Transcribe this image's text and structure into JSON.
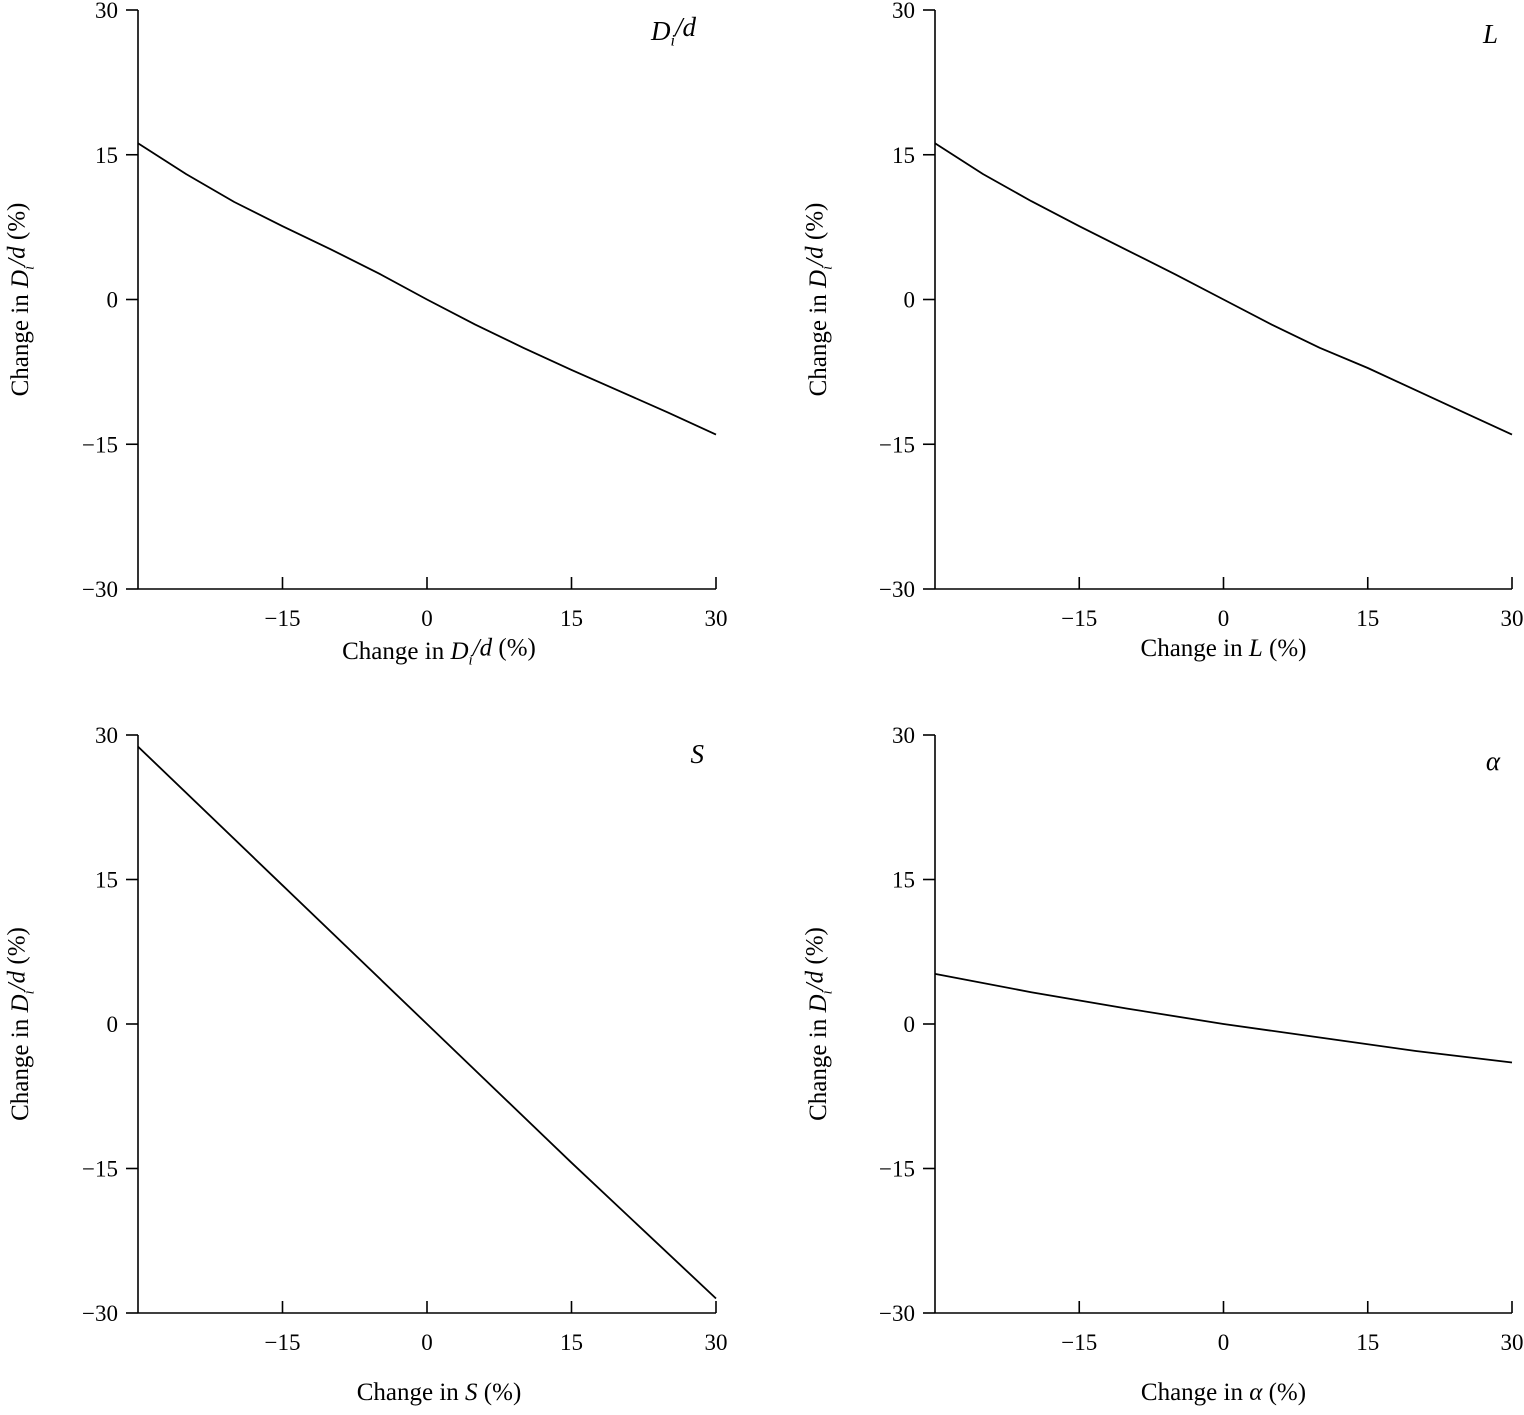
{
  "chart_data": [
    {
      "type": "line",
      "panel_label": "D_i/d",
      "xlabel": "Change in D_i/d (%)",
      "ylabel": "Change in D_i/d (%)",
      "xlim": [
        -30,
        30
      ],
      "ylim": [
        -30,
        30
      ],
      "xticks": [
        -15,
        0,
        15,
        30
      ],
      "yticks": [
        30,
        15,
        0,
        -15,
        -30
      ],
      "series": [
        {
          "x": [
            -30,
            -25,
            -20,
            -15,
            -10,
            -5,
            0,
            5,
            10,
            15,
            20,
            25,
            30
          ],
          "y": [
            16.2,
            13.0,
            10.1,
            7.6,
            5.2,
            2.7,
            0,
            -2.6,
            -5.0,
            -7.3,
            -9.5,
            -11.7,
            -14.0
          ]
        }
      ]
    },
    {
      "type": "line",
      "panel_label": "L",
      "xlabel": "Change in L (%)",
      "ylabel": "Change in D_i/d (%)",
      "xlim": [
        -30,
        30
      ],
      "ylim": [
        -30,
        30
      ],
      "xticks": [
        -15,
        0,
        15,
        30
      ],
      "yticks": [
        30,
        15,
        0,
        -15,
        -30
      ],
      "series": [
        {
          "x": [
            -30,
            -25,
            -20,
            -15,
            -10,
            -5,
            0,
            5,
            10,
            15,
            20,
            25,
            30
          ],
          "y": [
            16.2,
            13.0,
            10.2,
            7.6,
            5.1,
            2.6,
            0,
            -2.6,
            -5.0,
            -7.1,
            -9.4,
            -11.7,
            -14.0
          ]
        }
      ]
    },
    {
      "type": "line",
      "panel_label": "S",
      "xlabel": "Change in S (%)",
      "ylabel": "Change in D_i/d (%)",
      "xlim": [
        -30,
        30
      ],
      "ylim": [
        -30,
        30
      ],
      "xticks": [
        -15,
        0,
        15,
        30
      ],
      "yticks": [
        30,
        15,
        0,
        -15,
        -30
      ],
      "series": [
        {
          "x": [
            -30,
            -15,
            0,
            15,
            30
          ],
          "y": [
            28.8,
            14.4,
            0,
            -14.4,
            -28.5
          ]
        }
      ]
    },
    {
      "type": "line",
      "panel_label": "α",
      "xlabel": "Change in α (%)",
      "ylabel": "Change in D_i/d (%)",
      "xlim": [
        -30,
        30
      ],
      "ylim": [
        -30,
        30
      ],
      "xticks": [
        -15,
        0,
        15,
        30
      ],
      "yticks": [
        30,
        15,
        0,
        -15,
        -30
      ],
      "series": [
        {
          "x": [
            -30,
            -20,
            -10,
            0,
            10,
            20,
            30
          ],
          "y": [
            5.2,
            3.3,
            1.6,
            0,
            -1.4,
            -2.8,
            -4.0
          ]
        }
      ]
    }
  ]
}
